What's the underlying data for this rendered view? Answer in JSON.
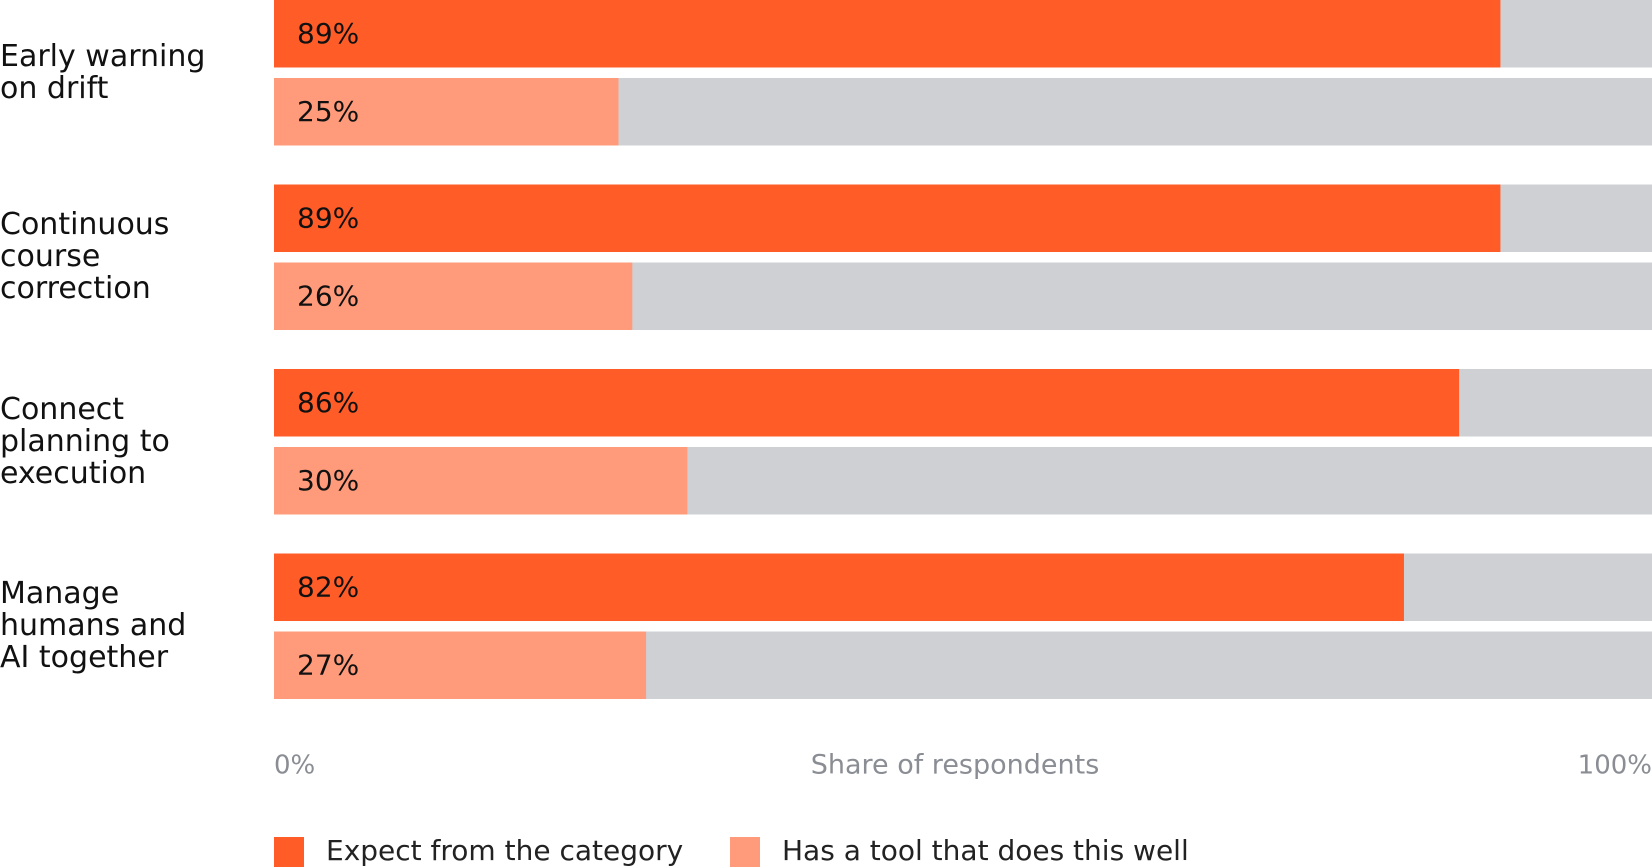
{
  "chart_data": {
    "type": "bar",
    "orientation": "horizontal",
    "categories": [
      "Early warning\non drift",
      "Continuous\ncourse\ncorrection",
      "Connect\nplanning to\nexecution",
      "Manage\nhumans and\nAI together"
    ],
    "series": [
      {
        "name": "Expect from the category",
        "color": "#ff5c28",
        "values": [
          89,
          89,
          86,
          82
        ],
        "value_labels": [
          "89%",
          "89%",
          "86%",
          "82%"
        ]
      },
      {
        "name": "Has a tool that does this well",
        "color": "#ff9b7a",
        "values": [
          25,
          26,
          30,
          27
        ],
        "value_labels": [
          "25%",
          "26%",
          "30%",
          "27%"
        ]
      }
    ],
    "xlabel": "Share of respondents",
    "xlim": [
      0,
      100
    ],
    "xticks": [
      {
        "value": 0,
        "label": "0%"
      },
      {
        "value": 100,
        "label": "100%"
      }
    ],
    "track_color": "#cfd0d3",
    "legend": "bottom"
  }
}
